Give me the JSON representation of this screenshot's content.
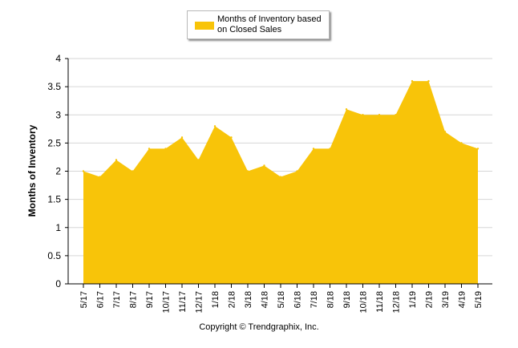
{
  "chart_data": {
    "type": "area",
    "categories": [
      "5/17",
      "6/17",
      "7/17",
      "8/17",
      "9/17",
      "10/17",
      "11/17",
      "12/17",
      "1/18",
      "2/18",
      "3/18",
      "4/18",
      "5/18",
      "6/18",
      "7/18",
      "8/18",
      "9/18",
      "10/18",
      "11/18",
      "12/18",
      "1/19",
      "2/19",
      "3/19",
      "4/19",
      "5/19"
    ],
    "series": [
      {
        "name": "Months of Inventory based on Closed Sales",
        "color": "#f8c409",
        "values": [
          2.0,
          1.9,
          2.2,
          2.0,
          2.4,
          2.4,
          2.6,
          2.2,
          2.8,
          2.6,
          2.0,
          2.1,
          1.9,
          2.0,
          2.4,
          2.4,
          3.1,
          3.0,
          3.0,
          3.0,
          3.6,
          3.6,
          2.7,
          2.5,
          2.4
        ]
      }
    ],
    "ylabel": "Months of Inventory",
    "xlabel": "",
    "ylim": [
      0,
      4
    ],
    "yticks": [
      "0",
      "0.5",
      "1",
      "1.5",
      "2",
      "2.5",
      "3",
      "3.5",
      "4"
    ],
    "grid": true,
    "legend_position": "top-center"
  },
  "legend": {
    "label": "Months of Inventory based on Closed Sales"
  },
  "footer": {
    "copyright": "Copyright © Trendgraphix, Inc."
  }
}
